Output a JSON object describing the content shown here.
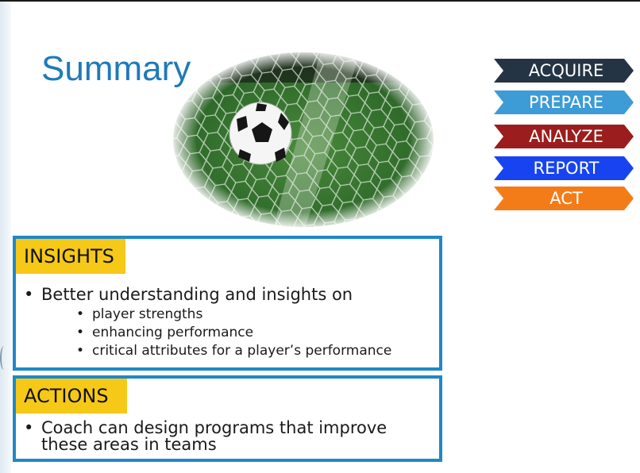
{
  "slide": {
    "title": "Summary",
    "hero_image": "soccer-ball-hitting-net"
  },
  "stages": [
    {
      "label": "ACQUIRE",
      "color": "#253444"
    },
    {
      "label": "PREPARE",
      "color": "#3d9bd6"
    },
    {
      "label": "ANALYZE",
      "color": "#9b1d1d"
    },
    {
      "label": "REPORT",
      "color": "#1744f0"
    },
    {
      "label": "ACT",
      "color": "#f47c18"
    }
  ],
  "insights": {
    "heading": "INSIGHTS",
    "bullet": "Better understanding and insights on",
    "sub_bullets": [
      "player strengths",
      "enhancing performance",
      "critical attributes for a player’s performance"
    ]
  },
  "actions": {
    "heading": "ACTIONS",
    "bullet": "Coach can design programs that improve these areas in teams"
  }
}
